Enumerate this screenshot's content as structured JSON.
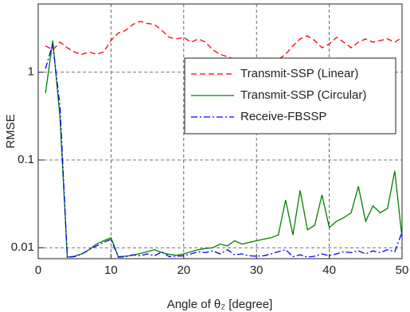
{
  "chart_data": {
    "type": "line",
    "x_label": "Angle of θ₂ [degree]",
    "y_label": "RMSE",
    "x": [
      1,
      2,
      3,
      4,
      5,
      6,
      7,
      8,
      9,
      10,
      11,
      12,
      13,
      14,
      15,
      16,
      17,
      18,
      19,
      20,
      21,
      22,
      23,
      24,
      25,
      26,
      27,
      28,
      29,
      30,
      31,
      32,
      33,
      34,
      35,
      36,
      37,
      38,
      39,
      40,
      41,
      42,
      43,
      44,
      45,
      46,
      47,
      48,
      49,
      50
    ],
    "series": [
      {
        "name": "Transmit-SSP (Linear)",
        "color": "#ff0000",
        "linestyle": "dashed",
        "values": [
          2.0,
          1.8,
          2.2,
          1.9,
          1.7,
          1.6,
          1.7,
          1.6,
          1.7,
          2.3,
          2.8,
          3.0,
          3.5,
          3.8,
          3.6,
          3.5,
          3.0,
          2.5,
          2.4,
          2.5,
          2.2,
          2.4,
          2.2,
          1.8,
          1.6,
          1.5,
          1.4,
          1.4,
          1.3,
          1.3,
          1.2,
          1.3,
          1.4,
          1.6,
          2.0,
          2.4,
          2.6,
          2.3,
          1.9,
          2.1,
          2.5,
          2.2,
          1.9,
          2.2,
          2.4,
          2.2,
          2.3,
          2.4,
          2.2,
          2.5
        ]
      },
      {
        "name": "Transmit-SSP (Circular)",
        "color": "#008000",
        "linestyle": "solid",
        "values": [
          0.58,
          2.3,
          0.3,
          0.0078,
          0.008,
          0.0085,
          0.0095,
          0.011,
          0.012,
          0.013,
          0.0079,
          0.008,
          0.0082,
          0.0086,
          0.009,
          0.0095,
          0.0088,
          0.0084,
          0.0082,
          0.0085,
          0.009,
          0.0095,
          0.0098,
          0.01,
          0.011,
          0.0105,
          0.012,
          0.011,
          0.0115,
          0.012,
          0.0125,
          0.013,
          0.014,
          0.035,
          0.014,
          0.045,
          0.016,
          0.018,
          0.04,
          0.017,
          0.02,
          0.022,
          0.025,
          0.05,
          0.02,
          0.03,
          0.025,
          0.028,
          0.075,
          0.013
        ]
      },
      {
        "name": "Receive-FBSSP",
        "color": "#0000ff",
        "linestyle": "dashdot",
        "values": [
          1.1,
          2.1,
          0.4,
          0.0078,
          0.0079,
          0.0085,
          0.0095,
          0.0105,
          0.0115,
          0.0125,
          0.0078,
          0.0079,
          0.0083,
          0.0081,
          0.0085,
          0.0081,
          0.009,
          0.0079,
          0.008,
          0.0081,
          0.0085,
          0.009,
          0.0088,
          0.0092,
          0.0085,
          0.0095,
          0.0083,
          0.0085,
          0.0081,
          0.008,
          0.0081,
          0.0085,
          0.009,
          0.0095,
          0.0079,
          0.0083,
          0.0078,
          0.008,
          0.0085,
          0.0081,
          0.0085,
          0.009,
          0.0088,
          0.0092,
          0.0085,
          0.0092,
          0.0088,
          0.0095,
          0.009,
          0.015
        ]
      }
    ],
    "xlim": [
      0,
      50
    ],
    "xticks": [
      0,
      10,
      20,
      30,
      40,
      50
    ],
    "ylim": [
      0.0075,
      6
    ],
    "yticks": [
      0.01,
      0.1,
      1
    ],
    "log_y": true,
    "grid": true,
    "legend": "right"
  }
}
